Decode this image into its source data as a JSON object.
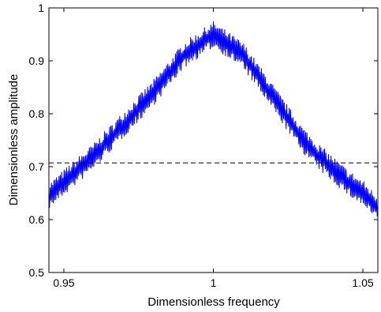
{
  "chart_data": {
    "type": "line",
    "title": "",
    "xlabel": "Dimensionless frequency",
    "ylabel": "Dimensionless amplitude",
    "xlim": [
      0.945,
      1.055
    ],
    "ylim": [
      0.5,
      1.0
    ],
    "xticks": [
      0.95,
      1.0,
      1.05
    ],
    "xtick_labels": [
      "0.95",
      "1",
      "1.05"
    ],
    "yticks": [
      0.5,
      0.6,
      0.7,
      0.8,
      0.9,
      1.0
    ],
    "ytick_labels": [
      "0.5",
      "0.6",
      "0.7",
      "0.8",
      "0.9",
      "1"
    ],
    "grid": false,
    "series": [
      {
        "style": "solid",
        "color": "#0000ff",
        "x": [
          0.945,
          0.95,
          0.955,
          0.96,
          0.965,
          0.97,
          0.975,
          0.98,
          0.985,
          0.99,
          0.995,
          1.0,
          1.005,
          1.01,
          1.015,
          1.02,
          1.025,
          1.03,
          1.035,
          1.04,
          1.045,
          1.05,
          1.055
        ],
        "y": [
          0.645,
          0.67,
          0.695,
          0.72,
          0.75,
          0.78,
          0.81,
          0.84,
          0.875,
          0.91,
          0.93,
          0.95,
          0.93,
          0.91,
          0.87,
          0.83,
          0.79,
          0.75,
          0.72,
          0.695,
          0.67,
          0.65,
          0.62
        ],
        "noise_amplitude": 0.028
      },
      {
        "style": "dashed",
        "color": "#000000",
        "x": [
          0.945,
          1.055
        ],
        "y": [
          0.707,
          0.707
        ]
      }
    ]
  }
}
